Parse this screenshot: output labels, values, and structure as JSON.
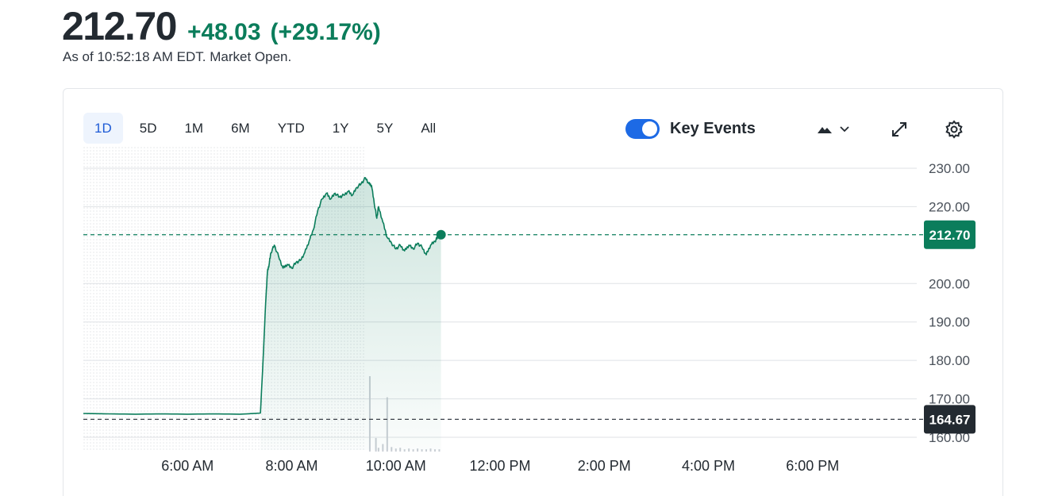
{
  "quote": {
    "price": "212.70",
    "change": "+48.03",
    "change_pct": "(+29.17%)",
    "as_of": "As of 10:52:18 AM EDT. Market Open.",
    "up_color": "#0b7d5b"
  },
  "toolbar": {
    "ranges": [
      "1D",
      "5D",
      "1M",
      "6M",
      "YTD",
      "1Y",
      "5Y",
      "All"
    ],
    "active_range": "1D",
    "key_events_label": "Key Events",
    "key_events_on": true,
    "chart_type_icon": "mountain-chart-icon",
    "expand_icon": "expand-icon",
    "settings_icon": "gear-icon"
  },
  "chart_data": {
    "type": "area",
    "y_ticks": [
      "230.00",
      "220.00",
      "200.00",
      "190.00",
      "180.00",
      "170.00",
      "160.00"
    ],
    "x_ticks": [
      "6:00 AM",
      "8:00 AM",
      "10:00 AM",
      "12:00 PM",
      "2:00 PM",
      "4:00 PM",
      "6:00 PM"
    ],
    "ylim": [
      160,
      230
    ],
    "current_price": 212.7,
    "current_price_label": "212.70",
    "previous_close": 164.67,
    "previous_close_label": "164.67",
    "series": [
      {
        "x": [
          "04:00",
          "04:30",
          "05:00",
          "05:30",
          "06:00",
          "06:30",
          "07:00",
          "07:24",
          "07:27",
          "07:30",
          "07:32",
          "07:34",
          "07:36",
          "07:40",
          "07:45",
          "07:50",
          "07:55",
          "08:00",
          "08:05",
          "08:10",
          "08:15",
          "08:20",
          "08:25",
          "08:30",
          "08:35",
          "08:40",
          "08:45",
          "08:50",
          "08:55",
          "09:00",
          "09:05",
          "09:10",
          "09:15",
          "09:20",
          "09:25",
          "09:29",
          "09:32",
          "09:35",
          "09:38",
          "09:40",
          "09:45",
          "09:50",
          "09:55",
          "10:00",
          "10:05",
          "10:10",
          "10:15",
          "10:20",
          "10:25",
          "10:30",
          "10:35",
          "10:40",
          "10:45",
          "10:48",
          "10:52"
        ],
        "values": [
          166.2,
          166.1,
          166.0,
          166.1,
          166.0,
          166.1,
          166.0,
          166.3,
          180,
          195,
          203,
          205,
          208,
          210,
          207,
          204,
          205,
          204,
          205.5,
          206,
          208,
          211,
          214,
          219,
          222,
          223.5,
          222,
          223.5,
          222.5,
          223,
          224,
          223,
          225,
          226,
          227.5,
          226,
          225.5,
          221,
          217,
          220,
          216,
          212,
          210.5,
          209,
          210,
          208.5,
          210,
          209,
          210.5,
          209.5,
          207.5,
          210,
          211,
          212,
          212.7
        ]
      }
    ],
    "volume": {
      "x": [
        "09:30",
        "09:37",
        "09:40",
        "09:45",
        "09:50",
        "09:55",
        "10:00",
        "10:05",
        "10:10",
        "10:15",
        "10:20",
        "10:25",
        "10:30",
        "10:35",
        "10:40",
        "10:45",
        "10:50"
      ],
      "bars": [
        1,
        0.18,
        0.05,
        0.1,
        0.72,
        0.06,
        0.04,
        0.05,
        0.03,
        0.04,
        0.03,
        0.04,
        0.03,
        0.03,
        0.04,
        0.03,
        0.03
      ]
    },
    "line_color": "#0b7d5b",
    "prev_close_tag_color": "#232a31"
  }
}
